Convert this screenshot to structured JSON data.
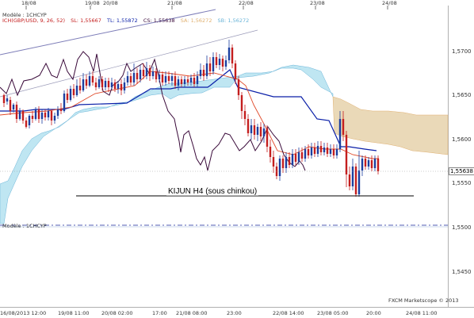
{
  "colors": {
    "kumo_bull": "#bfe6f2",
    "kumo_bear": "#ead9b8",
    "kijun": "#0a1fa8",
    "tenkan": "#e04a2a",
    "chikou": "#3a0a3a",
    "candle_up": "#1b3fa0",
    "candle_down": "#c41e1e",
    "senkou_a": "#e0b070",
    "senkou_b": "#6ab4d8"
  },
  "legend": {
    "model_label": "Modèle : 1CHCYP",
    "indicator_line": "ICH(GBP/USD, 9, 26, 52)",
    "sl": "SL: 1,55667",
    "tl": "TL: 1,55872",
    "cs": "CS: 1,55638",
    "sa": "SA: 1,56272",
    "sb": "SB: 1,56272"
  },
  "lower_pane_label": "Modèle : 1CHCYP",
  "annotation": "KIJUN H4 (sous chinkou)",
  "current_price_tag": "1,55638",
  "brand": "FXCM Marketscope © 2013",
  "y_axis_labels": [
    "1,5700",
    "1,5650",
    "1,5600",
    "1,5550",
    "1,5500",
    "1,5450"
  ],
  "top_date_labels": [
    "18/08",
    "19/08",
    "20/08",
    "21/08",
    "22/08",
    "23/08",
    "24/08"
  ],
  "bottom_time_labels": [
    "16/08/2013 12:00",
    "19/08 11:00",
    "20/08 02:00",
    "17:00",
    "21/08 08:00",
    "23:00",
    "22/08 14:00",
    "23/08 05:00",
    "20:00",
    "24/08 11:00"
  ]
}
